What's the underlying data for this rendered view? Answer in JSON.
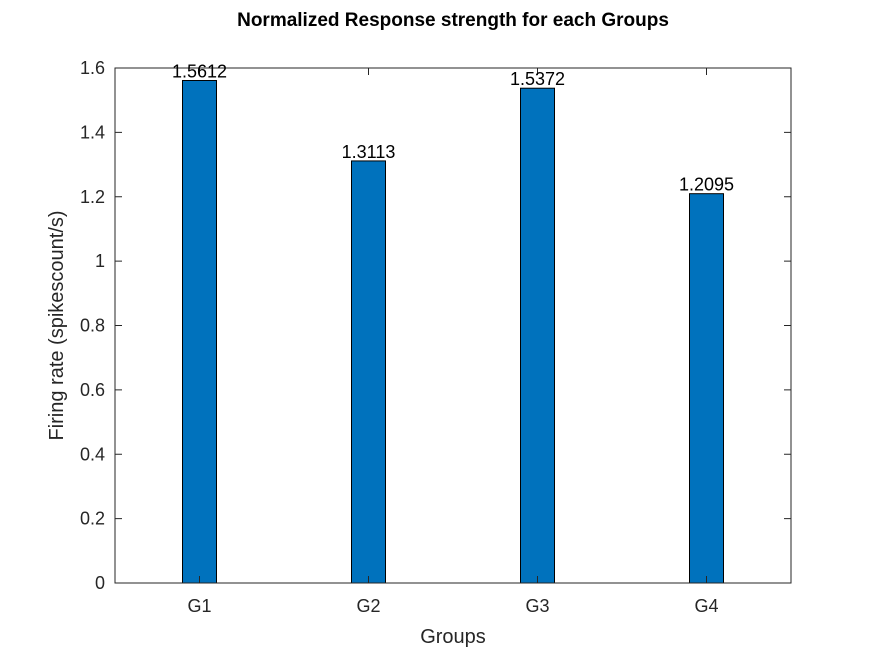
{
  "chart_data": {
    "type": "bar",
    "title": "Normalized Response strength for each Groups",
    "xlabel": "Groups",
    "ylabel": "Firing rate (spikescount/s)",
    "categories": [
      "G1",
      "G2",
      "G3",
      "G4"
    ],
    "values": [
      1.5612,
      1.3113,
      1.5372,
      1.2095
    ],
    "data_labels": [
      "1.5612",
      "1.3113",
      "1.5372",
      "1.2095"
    ],
    "ylim": [
      0,
      1.6
    ],
    "yticks": [
      0,
      0.2,
      0.4,
      0.6,
      0.8,
      1,
      1.2,
      1.4,
      1.6
    ],
    "ytick_labels": [
      "0",
      "0.2",
      "0.4",
      "0.6",
      "0.8",
      "1",
      "1.2",
      "1.4",
      "1.6"
    ],
    "grid": false,
    "bar_color": "#0072BD",
    "bar_edge_color": "#000000",
    "axis_color": "#262626"
  }
}
